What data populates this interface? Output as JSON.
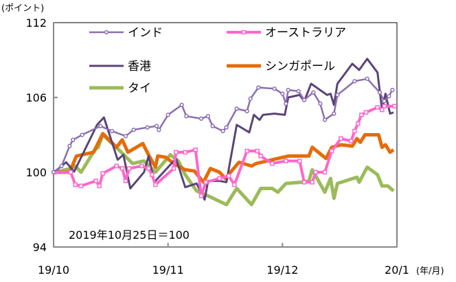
{
  "chart_data": {
    "type": "line",
    "ylabel": "(ポイント)",
    "xlabel": "(年/月)",
    "annotation": "2019年10月25日＝100",
    "ylim": [
      94,
      112
    ],
    "yticks": [
      94,
      100,
      106,
      112
    ],
    "xlim": [
      0,
      3
    ],
    "xticks": [
      {
        "x": 0,
        "label": "19/10"
      },
      {
        "x": 1,
        "label": "19/11"
      },
      {
        "x": 2,
        "label": "19/12"
      },
      {
        "x": 3,
        "label": "20/1"
      }
    ],
    "x_units": "months since 2019-10-01",
    "grid": false,
    "legend_position": "top-left (inside plot)",
    "series": [
      {
        "name": "インド",
        "color": "#8a6eb0",
        "marker": "circle",
        "width": 2.5,
        "points": [
          [
            0,
            100
          ],
          [
            0.07,
            100.5
          ],
          [
            0.14,
            102.1
          ],
          [
            0.17,
            102.6
          ],
          [
            0.25,
            103.0
          ],
          [
            0.41,
            103.7
          ],
          [
            0.51,
            103.3
          ],
          [
            0.63,
            102.9
          ],
          [
            0.7,
            103.4
          ],
          [
            0.82,
            103.6
          ],
          [
            0.9,
            103.7
          ],
          [
            0.92,
            103.4
          ],
          [
            1.0,
            104.6
          ],
          [
            1.12,
            105.4
          ],
          [
            1.16,
            104.5
          ],
          [
            1.29,
            104.3
          ],
          [
            1.35,
            104.5
          ],
          [
            1.39,
            103.7
          ],
          [
            1.48,
            103.3
          ],
          [
            1.51,
            103.6
          ],
          [
            1.6,
            105.1
          ],
          [
            1.69,
            104.9
          ],
          [
            1.72,
            105.9
          ],
          [
            1.79,
            106.8
          ],
          [
            1.93,
            106.7
          ],
          [
            2.0,
            106.3
          ],
          [
            2.03,
            105.5
          ],
          [
            2.05,
            106.6
          ],
          [
            2.14,
            106.5
          ],
          [
            2.19,
            105.8
          ],
          [
            2.27,
            106.4
          ],
          [
            2.33,
            105.5
          ],
          [
            2.37,
            104.2
          ],
          [
            2.45,
            104.7
          ],
          [
            2.48,
            106.2
          ],
          [
            2.63,
            107.3
          ],
          [
            2.74,
            107.5
          ],
          [
            2.85,
            106.4
          ],
          [
            2.89,
            105.7
          ],
          [
            2.93,
            106.1
          ],
          [
            2.96,
            106.6
          ]
        ]
      },
      {
        "name": "オーストラリア",
        "color": "#ff66cc",
        "marker": "square",
        "width": 4,
        "points": [
          [
            0.01,
            100
          ],
          [
            0.15,
            100
          ],
          [
            0.19,
            99.0
          ],
          [
            0.24,
            98.9
          ],
          [
            0.37,
            99.3
          ],
          [
            0.4,
            98.9
          ],
          [
            0.43,
            99.9
          ],
          [
            0.55,
            100.5
          ],
          [
            0.6,
            100.3
          ],
          [
            0.63,
            99.3
          ],
          [
            0.66,
            100.3
          ],
          [
            0.77,
            100.5
          ],
          [
            0.83,
            100.3
          ],
          [
            0.86,
            99.8
          ],
          [
            0.89,
            99.0
          ],
          [
            1.05,
            100.3
          ],
          [
            1.07,
            101.6
          ],
          [
            1.15,
            101.6
          ],
          [
            1.24,
            101.8
          ],
          [
            1.29,
            98.1
          ],
          [
            1.33,
            99.2
          ],
          [
            1.45,
            99.5
          ],
          [
            1.53,
            99.7
          ],
          [
            1.58,
            99.0
          ],
          [
            1.69,
            101.7
          ],
          [
            1.78,
            101.7
          ],
          [
            1.81,
            101.3
          ],
          [
            1.91,
            100.7
          ],
          [
            2.03,
            100.9
          ],
          [
            2.15,
            100.9
          ],
          [
            2.19,
            99.2
          ],
          [
            2.26,
            99.2
          ],
          [
            2.29,
            100.0
          ],
          [
            2.37,
            100.0
          ],
          [
            2.43,
            101.7
          ],
          [
            2.51,
            102.7
          ],
          [
            2.6,
            102.5
          ],
          [
            2.63,
            103.3
          ],
          [
            2.66,
            103.9
          ],
          [
            2.69,
            104.6
          ],
          [
            2.73,
            104.8
          ],
          [
            2.83,
            105.2
          ],
          [
            2.87,
            105.0
          ],
          [
            2.89,
            105.3
          ],
          [
            2.98,
            105.3
          ]
        ]
      },
      {
        "name": "香港",
        "color": "#5a4478",
        "marker": "none",
        "width": 3,
        "points": [
          [
            0.01,
            100.05
          ],
          [
            0.11,
            100.8
          ],
          [
            0.18,
            100.05
          ],
          [
            0.38,
            103.8
          ],
          [
            0.44,
            104.4
          ],
          [
            0.56,
            101.0
          ],
          [
            0.61,
            101.4
          ],
          [
            0.67,
            98.7
          ],
          [
            0.79,
            100.0
          ],
          [
            0.83,
            101.3
          ],
          [
            0.88,
            99.2
          ],
          [
            1.07,
            101.1
          ],
          [
            1.15,
            98.8
          ],
          [
            1.25,
            99.1
          ],
          [
            1.32,
            97.8
          ],
          [
            1.35,
            99.3
          ],
          [
            1.45,
            99.3
          ],
          [
            1.51,
            99.2
          ],
          [
            1.6,
            103.8
          ],
          [
            1.71,
            103.2
          ],
          [
            1.75,
            104.6
          ],
          [
            1.8,
            104.2
          ],
          [
            1.83,
            104.6
          ],
          [
            1.93,
            104.7
          ],
          [
            2.02,
            104.6
          ],
          [
            2.05,
            106.0
          ],
          [
            2.15,
            106.2
          ],
          [
            2.19,
            105.7
          ],
          [
            2.25,
            107.1
          ],
          [
            2.39,
            106.2
          ],
          [
            2.42,
            106.3
          ],
          [
            2.45,
            105.4
          ],
          [
            2.48,
            107.1
          ],
          [
            2.61,
            108.7
          ],
          [
            2.67,
            108.2
          ],
          [
            2.74,
            109.1
          ],
          [
            2.83,
            108.0
          ],
          [
            2.87,
            105.0
          ],
          [
            2.9,
            106.3
          ],
          [
            2.94,
            104.7
          ],
          [
            2.97,
            104.8
          ]
        ]
      },
      {
        "name": "シンガポール",
        "color": "#e46c0a",
        "marker": "none",
        "width": 5,
        "points": [
          [
            0.01,
            100
          ],
          [
            0.14,
            100
          ],
          [
            0.2,
            101.3
          ],
          [
            0.35,
            101.6
          ],
          [
            0.43,
            103.1
          ],
          [
            0.55,
            102.0
          ],
          [
            0.6,
            102.6
          ],
          [
            0.65,
            101.6
          ],
          [
            0.78,
            102.3
          ],
          [
            0.83,
            101.4
          ],
          [
            0.89,
            100.4
          ],
          [
            0.91,
            101.3
          ],
          [
            0.98,
            101.2
          ],
          [
            1.05,
            100.7
          ],
          [
            1.15,
            100.2
          ],
          [
            1.23,
            100.1
          ],
          [
            1.31,
            99.2
          ],
          [
            1.37,
            100.3
          ],
          [
            1.45,
            100
          ],
          [
            1.5,
            99.5
          ],
          [
            1.62,
            100.8
          ],
          [
            1.73,
            100.5
          ],
          [
            1.77,
            100.7
          ],
          [
            2.05,
            101.3
          ],
          [
            2.23,
            101.3
          ],
          [
            2.26,
            102.0
          ],
          [
            2.38,
            101.1
          ],
          [
            2.43,
            102.0
          ],
          [
            2.51,
            102.2
          ],
          [
            2.61,
            102.1
          ],
          [
            2.65,
            102.7
          ],
          [
            2.68,
            102.4
          ],
          [
            2.72,
            103.0
          ],
          [
            2.84,
            103.0
          ],
          [
            2.87,
            102.0
          ],
          [
            2.9,
            102.2
          ],
          [
            2.94,
            101.6
          ],
          [
            2.97,
            101.8
          ]
        ]
      },
      {
        "name": "タイ",
        "color": "#9bbb59",
        "marker": "none",
        "width": 5,
        "points": [
          [
            0.01,
            100
          ],
          [
            0.15,
            100.3
          ],
          [
            0.19,
            100.5
          ],
          [
            0.24,
            100
          ],
          [
            0.36,
            101.8
          ],
          [
            0.39,
            102.0
          ],
          [
            0.43,
            103.0
          ],
          [
            0.57,
            101.8
          ],
          [
            0.69,
            100.7
          ],
          [
            0.79,
            100.9
          ],
          [
            0.89,
            100
          ],
          [
            1.02,
            101.4
          ],
          [
            1.09,
            100.9
          ],
          [
            1.15,
            99.8
          ],
          [
            1.25,
            98.5
          ],
          [
            1.35,
            98.1
          ],
          [
            1.51,
            97.4
          ],
          [
            1.6,
            98.7
          ],
          [
            1.73,
            97.4
          ],
          [
            1.81,
            98.7
          ],
          [
            1.91,
            98.7
          ],
          [
            1.96,
            98.4
          ],
          [
            2.03,
            99.1
          ],
          [
            2.17,
            99.2
          ],
          [
            2.23,
            99.3
          ],
          [
            2.26,
            100.2
          ],
          [
            2.37,
            98.4
          ],
          [
            2.42,
            99.5
          ],
          [
            2.45,
            97.9
          ],
          [
            2.48,
            99.1
          ],
          [
            2.65,
            99.6
          ],
          [
            2.67,
            99.2
          ],
          [
            2.74,
            100.4
          ],
          [
            2.83,
            99.8
          ],
          [
            2.87,
            98.9
          ],
          [
            2.92,
            98.9
          ],
          [
            2.97,
            98.5
          ]
        ]
      }
    ]
  }
}
